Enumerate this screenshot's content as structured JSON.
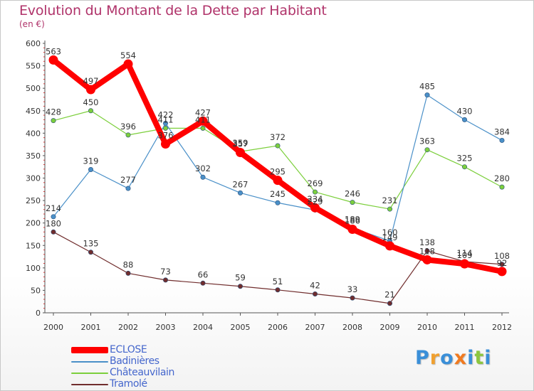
{
  "chart_data": {
    "type": "line",
    "title": "Evolution du Montant de la Dette par Habitant",
    "subtitle": "(en €)",
    "xlabel": "",
    "ylabel": "",
    "x": [
      "2000",
      "2001",
      "2002",
      "2003",
      "2004",
      "2005",
      "2006",
      "2007",
      "2008",
      "2009",
      "2010",
      "2011",
      "2012"
    ],
    "ylim": [
      0,
      600
    ],
    "yticks": [
      0,
      50,
      100,
      150,
      200,
      250,
      300,
      350,
      400,
      450,
      500,
      550,
      600
    ],
    "grid": false,
    "legend_position": "bottom-left",
    "series": [
      {
        "name": "ECLOSE",
        "color": "#ff0000",
        "values": [
          563,
          497,
          554,
          376,
          427,
          357,
          295,
          234,
          186,
          149,
          118,
          109,
          92
        ],
        "labels": [
          "563",
          "497",
          "554",
          "376",
          "427",
          "357",
          "295",
          "234",
          "186",
          "149",
          "118",
          "109",
          "92"
        ]
      },
      {
        "name": "Badinières",
        "color": "#4a90c8",
        "values": [
          214,
          319,
          277,
          422,
          302,
          267,
          245,
          229,
          189,
          160,
          485,
          430,
          384
        ],
        "labels": [
          "214",
          "319",
          "277",
          "422",
          "302",
          "267",
          "245",
          "229",
          "189",
          "160",
          "485",
          "430",
          "384"
        ]
      },
      {
        "name": "Châteauvilain",
        "color": "#7ccf3c",
        "values": [
          428,
          450,
          396,
          411,
          411,
          359,
          372,
          269,
          246,
          231,
          363,
          325,
          280
        ],
        "labels": [
          "428",
          "450",
          "396",
          "411",
          "411",
          "359",
          "372",
          "269",
          "246",
          "231",
          "363",
          "325",
          "280"
        ]
      },
      {
        "name": "Tramolé",
        "color": "#702d2d",
        "values": [
          180,
          135,
          88,
          73,
          66,
          59,
          51,
          42,
          33,
          21,
          138,
          114,
          108
        ],
        "labels": [
          "180",
          "135",
          "88",
          "73",
          "66",
          "59",
          "51",
          "42",
          "33",
          "21",
          "138",
          "114",
          "108"
        ]
      }
    ]
  },
  "logo": {
    "text": "Proxiti",
    "letters": [
      "P",
      "r",
      "o",
      "x",
      "i",
      "t",
      "i"
    ],
    "colors": [
      "#3a8fd8",
      "#f0a030",
      "#3a8fd8",
      "#f07a20",
      "#3a8fd8",
      "#8cc63f",
      "#3a8fd8"
    ]
  }
}
